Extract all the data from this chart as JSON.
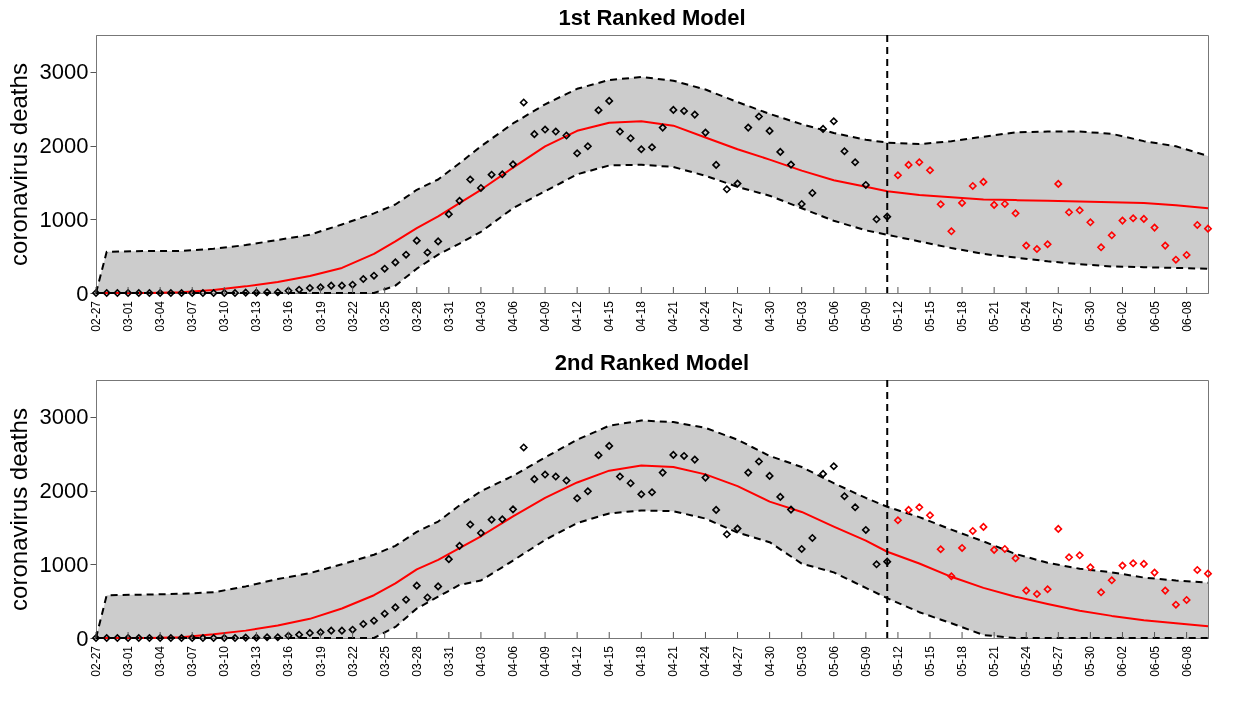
{
  "chart_data": [
    {
      "type": "line",
      "title": "1st Ranked Model",
      "ylabel": "coronavirus deaths",
      "xlim": [
        "--02-27",
        "--06-10"
      ],
      "ylim": [
        0,
        3500
      ],
      "yticks": [
        0,
        1000,
        2000,
        3000
      ],
      "grid": false,
      "xticks": [
        {
          "value": "--02-27",
          "label": "02-27"
        },
        {
          "value": "--03-01",
          "label": "03-01"
        },
        {
          "value": "--03-04",
          "label": "03-04"
        },
        {
          "value": "--03-07",
          "label": "03-07"
        },
        {
          "value": "--03-10",
          "label": "03-10"
        },
        {
          "value": "--03-13",
          "label": "03-13"
        },
        {
          "value": "--03-16",
          "label": "03-16"
        },
        {
          "value": "--03-19",
          "label": "03-19"
        },
        {
          "value": "--03-22",
          "label": "03-22"
        },
        {
          "value": "--03-25",
          "label": "03-25"
        },
        {
          "value": "--03-28",
          "label": "03-28"
        },
        {
          "value": "--03-31",
          "label": "03-31"
        },
        {
          "value": "--04-03",
          "label": "04-03"
        },
        {
          "value": "--04-06",
          "label": "04-06"
        },
        {
          "value": "--04-09",
          "label": "04-09"
        },
        {
          "value": "--04-12",
          "label": "04-12"
        },
        {
          "value": "--04-15",
          "label": "04-15"
        },
        {
          "value": "--04-18",
          "label": "04-18"
        },
        {
          "value": "--04-21",
          "label": "04-21"
        },
        {
          "value": "--04-24",
          "label": "04-24"
        },
        {
          "value": "--04-27",
          "label": "04-27"
        },
        {
          "value": "--04-30",
          "label": "04-30"
        },
        {
          "value": "--05-03",
          "label": "05-03"
        },
        {
          "value": "--05-06",
          "label": "05-06"
        },
        {
          "value": "--05-09",
          "label": "05-09"
        },
        {
          "value": "--05-12",
          "label": "05-12"
        },
        {
          "value": "--05-15",
          "label": "05-15"
        },
        {
          "value": "--05-18",
          "label": "05-18"
        },
        {
          "value": "--05-21",
          "label": "05-21"
        },
        {
          "value": "--05-24",
          "label": "05-24"
        },
        {
          "value": "--05-27",
          "label": "05-27"
        },
        {
          "value": "--05-30",
          "label": "05-30"
        },
        {
          "value": "--06-02",
          "label": "06-02"
        },
        {
          "value": "--06-05",
          "label": "06-05"
        },
        {
          "value": "--06-08",
          "label": "06-08"
        }
      ],
      "ref_lines": [
        {
          "axis": "x",
          "value": "--05-11",
          "color": "#000000",
          "line_style": "dashed"
        }
      ],
      "series": [
        {
          "type": "line",
          "color": "#ff0000",
          "marker": "none",
          "line_style": "solid",
          "x": [
            "--02-27",
            "--02-28",
            "--03-03",
            "--03-06",
            "--03-09",
            "--03-12",
            "--03-15",
            "--03-18",
            "--03-21",
            "--03-24",
            "--03-26",
            "--03-28",
            "--03-30",
            "--04-01",
            "--04-03",
            "--04-06",
            "--04-09",
            "--04-12",
            "--04-15",
            "--04-18",
            "--04-21",
            "--04-24",
            "--04-27",
            "--04-30",
            "--05-03",
            "--05-06",
            "--05-09",
            "--05-11",
            "--05-14",
            "--05-17",
            "--05-20",
            "--05-23",
            "--05-26",
            "--05-29",
            "--06-01",
            "--06-04",
            "--06-07",
            "--06-10"
          ],
          "values": [
            0,
            0,
            0,
            10,
            40,
            90,
            150,
            230,
            340,
            530,
            700,
            880,
            1040,
            1220,
            1400,
            1700,
            1990,
            2200,
            2310,
            2330,
            2270,
            2110,
            1950,
            1810,
            1660,
            1530,
            1440,
            1380,
            1330,
            1300,
            1270,
            1260,
            1250,
            1240,
            1230,
            1220,
            1190,
            1150
          ],
          "lower": [
            0,
            0,
            0,
            0,
            0,
            0,
            0,
            0,
            0,
            0,
            100,
            330,
            520,
            670,
            830,
            1150,
            1380,
            1610,
            1730,
            1740,
            1710,
            1590,
            1440,
            1320,
            1150,
            980,
            850,
            790,
            700,
            610,
            530,
            480,
            430,
            390,
            360,
            350,
            340,
            330
          ],
          "upper": [
            0,
            560,
            570,
            570,
            600,
            650,
            720,
            790,
            930,
            1080,
            1200,
            1400,
            1540,
            1760,
            1990,
            2300,
            2560,
            2770,
            2890,
            2930,
            2880,
            2760,
            2590,
            2430,
            2290,
            2170,
            2080,
            2040,
            2020,
            2060,
            2120,
            2180,
            2190,
            2190,
            2160,
            2060,
            1990,
            1860
          ]
        },
        {
          "type": "line",
          "color": "#000000",
          "marker": "none",
          "line_style": "dashed",
          "x": [
            "--02-27",
            "--02-28",
            "--03-03",
            "--03-06",
            "--03-09",
            "--03-12",
            "--03-15",
            "--03-18",
            "--03-21",
            "--03-24",
            "--03-26",
            "--03-28",
            "--03-30",
            "--04-01",
            "--04-03",
            "--04-06",
            "--04-09",
            "--04-12",
            "--04-15",
            "--04-18",
            "--04-21",
            "--04-24",
            "--04-27",
            "--04-30",
            "--05-03",
            "--05-06",
            "--05-09",
            "--05-11",
            "--05-14",
            "--05-17",
            "--05-20",
            "--05-23",
            "--05-26",
            "--05-29",
            "--06-01",
            "--06-04",
            "--06-07",
            "--06-10"
          ],
          "values": [
            0,
            560,
            570,
            570,
            600,
            650,
            720,
            790,
            930,
            1080,
            1200,
            1400,
            1540,
            1760,
            1990,
            2300,
            2560,
            2770,
            2890,
            2930,
            2880,
            2760,
            2590,
            2430,
            2290,
            2170,
            2080,
            2040,
            2020,
            2060,
            2120,
            2180,
            2190,
            2190,
            2160,
            2060,
            1990,
            1860
          ]
        },
        {
          "type": "line",
          "color": "#000000",
          "marker": "none",
          "line_style": "dashed",
          "x": [
            "--02-27",
            "--02-28",
            "--03-03",
            "--03-06",
            "--03-09",
            "--03-12",
            "--03-15",
            "--03-18",
            "--03-21",
            "--03-24",
            "--03-26",
            "--03-28",
            "--03-30",
            "--04-01",
            "--04-03",
            "--04-06",
            "--04-09",
            "--04-12",
            "--04-15",
            "--04-18",
            "--04-21",
            "--04-24",
            "--04-27",
            "--04-30",
            "--05-03",
            "--05-06",
            "--05-09",
            "--05-11",
            "--05-14",
            "--05-17",
            "--05-20",
            "--05-23",
            "--05-26",
            "--05-29",
            "--06-01",
            "--06-04",
            "--06-07",
            "--06-10"
          ],
          "values": [
            0,
            0,
            0,
            0,
            0,
            0,
            0,
            0,
            0,
            0,
            100,
            330,
            520,
            670,
            830,
            1150,
            1380,
            1610,
            1730,
            1740,
            1710,
            1590,
            1440,
            1320,
            1150,
            980,
            850,
            790,
            700,
            610,
            530,
            480,
            430,
            390,
            360,
            350,
            340,
            330
          ]
        },
        {
          "type": "scatter",
          "color": "#000000",
          "marker": "diamond",
          "x": [
            "--02-27",
            "--02-28",
            "--02-29",
            "--03-01",
            "--03-02",
            "--03-03",
            "--03-04",
            "--03-05",
            "--03-06",
            "--03-07",
            "--03-08",
            "--03-09",
            "--03-10",
            "--03-11",
            "--03-12",
            "--03-13",
            "--03-14",
            "--03-15",
            "--03-16",
            "--03-17",
            "--03-18",
            "--03-19",
            "--03-20",
            "--03-21",
            "--03-22",
            "--03-23",
            "--03-24",
            "--03-25",
            "--03-26",
            "--03-27",
            "--03-28",
            "--03-29",
            "--03-30",
            "--03-31",
            "--04-01",
            "--04-02",
            "--04-03",
            "--04-04",
            "--04-05",
            "--04-06",
            "--04-07",
            "--04-08",
            "--04-09",
            "--04-10",
            "--04-11",
            "--04-12",
            "--04-13",
            "--04-14",
            "--04-15",
            "--04-16",
            "--04-17",
            "--04-18",
            "--04-19",
            "--04-20",
            "--04-21",
            "--04-22",
            "--04-23",
            "--04-24",
            "--04-25",
            "--04-26",
            "--04-27",
            "--04-28",
            "--04-29",
            "--04-30",
            "--05-01",
            "--05-02",
            "--05-03",
            "--05-04",
            "--05-05",
            "--05-06",
            "--05-07",
            "--05-08",
            "--05-09",
            "--05-10",
            "--05-11"
          ],
          "values": [
            0,
            0,
            0,
            0,
            0,
            0,
            0,
            0,
            0,
            0,
            0,
            0,
            0,
            0,
            5,
            5,
            10,
            10,
            30,
            45,
            68,
            77,
            100,
            100,
            113,
            190,
            235,
            330,
            415,
            520,
            710,
            550,
            700,
            1070,
            1250,
            1540,
            1425,
            1605,
            1610,
            1745,
            2585,
            2155,
            2217,
            2190,
            2136,
            1896,
            1991,
            2480,
            2606,
            2190,
            2100,
            1950,
            1977,
            2244,
            2484,
            2470,
            2420,
            2176,
            1738,
            1407,
            1484,
            2244,
            2394,
            2199,
            1914,
            1742,
            1208,
            1357,
            2226,
            2330,
            1923,
            1774,
            1466,
            1000,
            1036
          ]
        },
        {
          "type": "scatter",
          "color": "#ff0000",
          "marker": "diamond",
          "x": [
            "--05-12",
            "--05-13",
            "--05-14",
            "--05-15",
            "--05-16",
            "--05-17",
            "--05-18",
            "--05-19",
            "--05-20",
            "--05-21",
            "--05-22",
            "--05-23",
            "--05-24",
            "--05-25",
            "--05-26",
            "--05-27",
            "--05-28",
            "--05-29",
            "--05-30",
            "--05-31",
            "--06-01",
            "--06-02",
            "--06-03",
            "--06-04",
            "--06-05",
            "--06-06",
            "--06-07",
            "--06-08",
            "--06-09",
            "--06-10"
          ],
          "values": [
            1597,
            1738,
            1774,
            1665,
            1204,
            837,
            1222,
            1452,
            1507,
            1195,
            1208,
            1081,
            643,
            597,
            661,
            1480,
            1095,
            1122,
            959,
            620,
            783,
            982,
            1014,
            1005,
            887,
            643,
            452,
            516,
            923,
            873
          ]
        }
      ]
    },
    {
      "type": "line",
      "title": "2nd Ranked Model",
      "ylabel": "coronavirus deaths",
      "xlim": [
        "--02-27",
        "--06-10"
      ],
      "ylim": [
        0,
        3500
      ],
      "yticks": [
        0,
        1000,
        2000,
        3000
      ],
      "grid": false,
      "xticks": [
        {
          "value": "--02-27",
          "label": "02-27"
        },
        {
          "value": "--03-01",
          "label": "03-01"
        },
        {
          "value": "--03-04",
          "label": "03-04"
        },
        {
          "value": "--03-07",
          "label": "03-07"
        },
        {
          "value": "--03-10",
          "label": "03-10"
        },
        {
          "value": "--03-13",
          "label": "03-13"
        },
        {
          "value": "--03-16",
          "label": "03-16"
        },
        {
          "value": "--03-19",
          "label": "03-19"
        },
        {
          "value": "--03-22",
          "label": "03-22"
        },
        {
          "value": "--03-25",
          "label": "03-25"
        },
        {
          "value": "--03-28",
          "label": "03-28"
        },
        {
          "value": "--03-31",
          "label": "03-31"
        },
        {
          "value": "--04-03",
          "label": "04-03"
        },
        {
          "value": "--04-06",
          "label": "04-06"
        },
        {
          "value": "--04-09",
          "label": "04-09"
        },
        {
          "value": "--04-12",
          "label": "04-12"
        },
        {
          "value": "--04-15",
          "label": "04-15"
        },
        {
          "value": "--04-18",
          "label": "04-18"
        },
        {
          "value": "--04-21",
          "label": "04-21"
        },
        {
          "value": "--04-24",
          "label": "04-24"
        },
        {
          "value": "--04-27",
          "label": "04-27"
        },
        {
          "value": "--04-30",
          "label": "04-30"
        },
        {
          "value": "--05-03",
          "label": "05-03"
        },
        {
          "value": "--05-06",
          "label": "05-06"
        },
        {
          "value": "--05-09",
          "label": "05-09"
        },
        {
          "value": "--05-12",
          "label": "05-12"
        },
        {
          "value": "--05-15",
          "label": "05-15"
        },
        {
          "value": "--05-18",
          "label": "05-18"
        },
        {
          "value": "--05-21",
          "label": "05-21"
        },
        {
          "value": "--05-24",
          "label": "05-24"
        },
        {
          "value": "--05-27",
          "label": "05-27"
        },
        {
          "value": "--05-30",
          "label": "05-30"
        },
        {
          "value": "--06-02",
          "label": "06-02"
        },
        {
          "value": "--06-05",
          "label": "06-05"
        },
        {
          "value": "--06-08",
          "label": "06-08"
        }
      ],
      "ref_lines": [
        {
          "axis": "x",
          "value": "--05-11",
          "color": "#000000",
          "line_style": "dashed"
        }
      ],
      "series": [
        {
          "type": "line",
          "color": "#ff0000",
          "marker": "none",
          "line_style": "solid",
          "x": [
            "--02-27",
            "--02-28",
            "--03-03",
            "--03-06",
            "--03-09",
            "--03-12",
            "--03-15",
            "--03-18",
            "--03-21",
            "--03-24",
            "--03-26",
            "--03-28",
            "--03-30",
            "--04-01",
            "--04-03",
            "--04-06",
            "--04-09",
            "--04-12",
            "--04-15",
            "--04-18",
            "--04-21",
            "--04-24",
            "--04-27",
            "--04-30",
            "--05-03",
            "--05-06",
            "--05-09",
            "--05-11",
            "--05-14",
            "--05-17",
            "--05-20",
            "--05-23",
            "--05-26",
            "--05-29",
            "--06-01",
            "--06-04",
            "--06-07",
            "--06-10"
          ],
          "values": [
            0,
            0,
            0,
            10,
            50,
            100,
            170,
            260,
            400,
            580,
            740,
            930,
            1060,
            1220,
            1380,
            1650,
            1900,
            2110,
            2270,
            2340,
            2320,
            2220,
            2060,
            1850,
            1710,
            1510,
            1320,
            1170,
            1010,
            830,
            680,
            560,
            460,
            370,
            300,
            240,
            200,
            160
          ],
          "lower": [
            0,
            0,
            0,
            0,
            0,
            0,
            0,
            0,
            0,
            0,
            150,
            400,
            560,
            720,
            780,
            1050,
            1330,
            1560,
            1690,
            1730,
            1720,
            1620,
            1430,
            1300,
            1010,
            890,
            680,
            540,
            350,
            200,
            40,
            0,
            0,
            0,
            0,
            0,
            0,
            0
          ],
          "upper": [
            0,
            580,
            590,
            600,
            620,
            700,
            800,
            880,
            1000,
            1130,
            1250,
            1440,
            1580,
            1800,
            1990,
            2200,
            2450,
            2690,
            2880,
            2950,
            2930,
            2850,
            2690,
            2470,
            2320,
            2100,
            1900,
            1780,
            1640,
            1470,
            1310,
            1140,
            1020,
            940,
            890,
            820,
            780,
            750
          ]
        },
        {
          "type": "line",
          "color": "#000000",
          "marker": "none",
          "line_style": "dashed",
          "x": [
            "--02-27",
            "--02-28",
            "--03-03",
            "--03-06",
            "--03-09",
            "--03-12",
            "--03-15",
            "--03-18",
            "--03-21",
            "--03-24",
            "--03-26",
            "--03-28",
            "--03-30",
            "--04-01",
            "--04-03",
            "--04-06",
            "--04-09",
            "--04-12",
            "--04-15",
            "--04-18",
            "--04-21",
            "--04-24",
            "--04-27",
            "--04-30",
            "--05-03",
            "--05-06",
            "--05-09",
            "--05-11",
            "--05-14",
            "--05-17",
            "--05-20",
            "--05-23",
            "--05-26",
            "--05-29",
            "--06-01",
            "--06-04",
            "--06-07",
            "--06-10"
          ],
          "values": [
            0,
            580,
            590,
            600,
            620,
            700,
            800,
            880,
            1000,
            1130,
            1250,
            1440,
            1580,
            1800,
            1990,
            2200,
            2450,
            2690,
            2880,
            2950,
            2930,
            2850,
            2690,
            2470,
            2320,
            2100,
            1900,
            1780,
            1640,
            1470,
            1310,
            1140,
            1020,
            940,
            890,
            820,
            780,
            750
          ]
        },
        {
          "type": "line",
          "color": "#000000",
          "marker": "none",
          "line_style": "dashed",
          "x": [
            "--02-27",
            "--02-28",
            "--03-03",
            "--03-06",
            "--03-09",
            "--03-12",
            "--03-15",
            "--03-18",
            "--03-21",
            "--03-24",
            "--03-26",
            "--03-28",
            "--03-30",
            "--04-01",
            "--04-03",
            "--04-06",
            "--04-09",
            "--04-12",
            "--04-15",
            "--04-18",
            "--04-21",
            "--04-24",
            "--04-27",
            "--04-30",
            "--05-03",
            "--05-06",
            "--05-09",
            "--05-11",
            "--05-14",
            "--05-17",
            "--05-20",
            "--05-23",
            "--05-26",
            "--05-29",
            "--06-01",
            "--06-04",
            "--06-07",
            "--06-10"
          ],
          "values": [
            0,
            0,
            0,
            0,
            0,
            0,
            0,
            0,
            0,
            0,
            150,
            400,
            560,
            720,
            780,
            1050,
            1330,
            1560,
            1690,
            1730,
            1720,
            1620,
            1430,
            1300,
            1010,
            890,
            680,
            540,
            350,
            200,
            40,
            0,
            0,
            0,
            0,
            0,
            0,
            0
          ]
        },
        {
          "type": "scatter",
          "color": "#000000",
          "marker": "diamond",
          "x": [
            "--02-27",
            "--02-28",
            "--02-29",
            "--03-01",
            "--03-02",
            "--03-03",
            "--03-04",
            "--03-05",
            "--03-06",
            "--03-07",
            "--03-08",
            "--03-09",
            "--03-10",
            "--03-11",
            "--03-12",
            "--03-13",
            "--03-14",
            "--03-15",
            "--03-16",
            "--03-17",
            "--03-18",
            "--03-19",
            "--03-20",
            "--03-21",
            "--03-22",
            "--03-23",
            "--03-24",
            "--03-25",
            "--03-26",
            "--03-27",
            "--03-28",
            "--03-29",
            "--03-30",
            "--03-31",
            "--04-01",
            "--04-02",
            "--04-03",
            "--04-04",
            "--04-05",
            "--04-06",
            "--04-07",
            "--04-08",
            "--04-09",
            "--04-10",
            "--04-11",
            "--04-12",
            "--04-13",
            "--04-14",
            "--04-15",
            "--04-16",
            "--04-17",
            "--04-18",
            "--04-19",
            "--04-20",
            "--04-21",
            "--04-22",
            "--04-23",
            "--04-24",
            "--04-25",
            "--04-26",
            "--04-27",
            "--04-28",
            "--04-29",
            "--04-30",
            "--05-01",
            "--05-02",
            "--05-03",
            "--05-04",
            "--05-05",
            "--05-06",
            "--05-07",
            "--05-08",
            "--05-09",
            "--05-10",
            "--05-11"
          ],
          "values": [
            0,
            0,
            0,
            0,
            0,
            0,
            0,
            0,
            0,
            0,
            0,
            0,
            0,
            0,
            5,
            5,
            10,
            10,
            30,
            45,
            68,
            77,
            100,
            100,
            113,
            190,
            235,
            330,
            415,
            520,
            710,
            550,
            700,
            1070,
            1250,
            1540,
            1425,
            1605,
            1610,
            1745,
            2585,
            2155,
            2217,
            2190,
            2136,
            1896,
            1991,
            2480,
            2606,
            2190,
            2100,
            1950,
            1977,
            2244,
            2484,
            2470,
            2420,
            2176,
            1738,
            1407,
            1484,
            2244,
            2394,
            2199,
            1914,
            1742,
            1208,
            1357,
            2226,
            2330,
            1923,
            1774,
            1466,
            1000,
            1036
          ]
        },
        {
          "type": "scatter",
          "color": "#ff0000",
          "marker": "diamond",
          "x": [
            "--05-12",
            "--05-13",
            "--05-14",
            "--05-15",
            "--05-16",
            "--05-17",
            "--05-18",
            "--05-19",
            "--05-20",
            "--05-21",
            "--05-22",
            "--05-23",
            "--05-24",
            "--05-25",
            "--05-26",
            "--05-27",
            "--05-28",
            "--05-29",
            "--05-30",
            "--05-31",
            "--06-01",
            "--06-02",
            "--06-03",
            "--06-04",
            "--06-05",
            "--06-06",
            "--06-07",
            "--06-08",
            "--06-09",
            "--06-10"
          ],
          "values": [
            1597,
            1738,
            1774,
            1665,
            1204,
            837,
            1222,
            1452,
            1507,
            1195,
            1208,
            1081,
            643,
            597,
            661,
            1480,
            1095,
            1122,
            959,
            620,
            783,
            982,
            1014,
            1005,
            887,
            643,
            452,
            516,
            923,
            873
          ]
        }
      ]
    }
  ]
}
